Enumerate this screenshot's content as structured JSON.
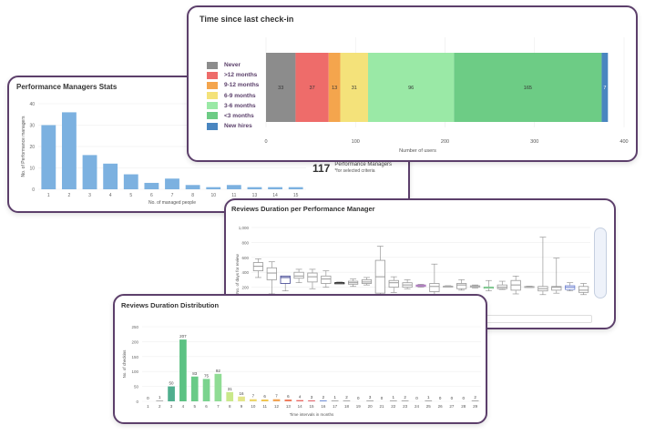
{
  "stats_card": {
    "title": "Performance Managers Stats",
    "chart_data": {
      "type": "bar",
      "xlabel": "No. of managed people",
      "ylabel": "No. of Performance managers",
      "categories": [
        "1",
        "2",
        "3",
        "4",
        "5",
        "6",
        "7",
        "8",
        "10",
        "11",
        "13",
        "14",
        "15"
      ],
      "values": [
        30,
        36,
        16,
        12,
        7,
        3,
        5,
        2,
        1,
        2,
        1,
        1,
        1
      ],
      "ylim": [
        0,
        40
      ],
      "yticks": [
        "0",
        "10",
        "20",
        "30",
        "40"
      ],
      "color": "#7cb1e0"
    }
  },
  "summary": {
    "count": "117",
    "label": "Performance Managers",
    "sublabel": "*for selected criteria"
  },
  "checkin_card": {
    "title": "Time since last check-in",
    "legend": [
      {
        "label": "Never",
        "color": "#8c8c8c"
      },
      {
        "label": ">12 months",
        "color": "#ee6c6a"
      },
      {
        "label": "9-12 months",
        "color": "#f4a54d"
      },
      {
        "label": "6-9 months",
        "color": "#f4e27a"
      },
      {
        "label": "3-6 months",
        "color": "#9ae9a6"
      },
      {
        "label": "<3 months",
        "color": "#6dcc85"
      },
      {
        "label": "New hires",
        "color": "#4a86c0"
      }
    ],
    "chart_data": {
      "type": "bar",
      "orientation": "horizontal-stacked",
      "xlabel": "Number of users",
      "xlim": [
        0,
        400
      ],
      "xticks": [
        "0",
        "100",
        "200",
        "300",
        "400"
      ],
      "series": [
        {
          "name": "Never",
          "value": 33
        },
        {
          "name": ">12 months",
          "value": 37
        },
        {
          "name": "9-12 months",
          "value": 13
        },
        {
          "name": "6-9 months",
          "value": 31
        },
        {
          "name": "3-6 months",
          "value": 96
        },
        {
          "name": "<3 months",
          "value": 165
        },
        {
          "name": "New hires",
          "value": 7
        }
      ]
    }
  },
  "reviews_pm_card": {
    "title": "Reviews Duration per Performance Manager",
    "chart_data": {
      "type": "box",
      "ylabel": "No. of days for review",
      "ylim": [
        0,
        1000
      ],
      "yticks": [
        "200",
        "400",
        "600",
        "800",
        "1,000"
      ],
      "boxes": [
        {
          "min": 330,
          "q1": 420,
          "med": 480,
          "q3": 530,
          "max": 580,
          "color": "#999999"
        },
        {
          "min": 110,
          "q1": 300,
          "med": 390,
          "q3": 460,
          "max": 540,
          "color": "#999999"
        },
        {
          "min": 150,
          "q1": 250,
          "med": 330,
          "q3": 350,
          "max": 350,
          "color": "#3a3f8f"
        },
        {
          "min": 260,
          "q1": 320,
          "med": 350,
          "q3": 400,
          "max": 440,
          "color": "#999999"
        },
        {
          "min": 180,
          "q1": 270,
          "med": 340,
          "q3": 390,
          "max": 440,
          "color": "#999999"
        },
        {
          "min": 200,
          "q1": 250,
          "med": 310,
          "q3": 350,
          "max": 420,
          "color": "#999999"
        },
        {
          "min": 250,
          "q1": 260,
          "med": 260,
          "q3": 260,
          "max": 270,
          "color": "#222222"
        },
        {
          "min": 210,
          "q1": 240,
          "med": 260,
          "q3": 280,
          "max": 310,
          "color": "#999999"
        },
        {
          "min": 230,
          "q1": 250,
          "med": 270,
          "q3": 300,
          "max": 330,
          "color": "#999999"
        },
        {
          "min": 70,
          "q1": 120,
          "med": 340,
          "q3": 560,
          "max": 750,
          "color": "#999999"
        },
        {
          "min": 130,
          "q1": 200,
          "med": 260,
          "q3": 290,
          "max": 340,
          "color": "#999999"
        },
        {
          "min": 180,
          "q1": 200,
          "med": 230,
          "q3": 260,
          "max": 300,
          "color": "#999999"
        },
        {
          "min": 200,
          "q1": 210,
          "med": 220,
          "q3": 230,
          "max": 240,
          "color": "#b07ec0"
        },
        {
          "min": 80,
          "q1": 140,
          "med": 210,
          "q3": 250,
          "max": 510,
          "color": "#999999"
        },
        {
          "min": 200,
          "q1": 205,
          "med": 210,
          "q3": 215,
          "max": 220,
          "color": "#aaaaaa"
        },
        {
          "min": 160,
          "q1": 180,
          "med": 230,
          "q3": 250,
          "max": 300,
          "color": "#999999"
        },
        {
          "min": 190,
          "q1": 200,
          "med": 210,
          "q3": 220,
          "max": 230,
          "color": "#aaaaaa"
        },
        {
          "min": 150,
          "q1": 190,
          "med": 200,
          "q3": 200,
          "max": 290,
          "color": "#6cc080"
        },
        {
          "min": 170,
          "q1": 180,
          "med": 200,
          "q3": 230,
          "max": 280,
          "color": "#999999"
        },
        {
          "min": 110,
          "q1": 160,
          "med": 230,
          "q3": 290,
          "max": 350,
          "color": "#999999"
        },
        {
          "min": 195,
          "q1": 200,
          "med": 205,
          "q3": 210,
          "max": 215,
          "color": "#aaaaaa"
        },
        {
          "min": 100,
          "q1": 150,
          "med": 180,
          "q3": 210,
          "max": 870,
          "color": "#999999"
        },
        {
          "min": 120,
          "q1": 160,
          "med": 200,
          "q3": 210,
          "max": 590,
          "color": "#999999"
        },
        {
          "min": 150,
          "q1": 170,
          "med": 200,
          "q3": 220,
          "max": 260,
          "color": "#6b7fcf"
        },
        {
          "min": 100,
          "q1": 130,
          "med": 160,
          "q3": 210,
          "max": 250,
          "color": "#999999"
        }
      ]
    }
  },
  "dist_card": {
    "title": "Reviews Duration Distribution",
    "chart_data": {
      "type": "bar",
      "xlabel": "Time intervals in months",
      "ylabel": "No. of checkins",
      "ylim": [
        0,
        250
      ],
      "yticks": [
        "0",
        "50",
        "100",
        "150",
        "200",
        "250"
      ],
      "categories": [
        "1",
        "2",
        "3",
        "4",
        "5",
        "6",
        "7",
        "8",
        "9",
        "10",
        "11",
        "12",
        "13",
        "14",
        "15",
        "16",
        "17",
        "18",
        "19",
        "20",
        "21",
        "22",
        "23",
        "24",
        "25",
        "26",
        "27",
        "28",
        "29"
      ],
      "values": [
        0,
        1,
        50,
        207,
        83,
        75,
        92,
        31,
        16,
        7,
        6,
        7,
        6,
        4,
        3,
        2,
        1,
        2,
        0,
        3,
        0,
        1,
        2,
        0,
        1,
        0,
        0,
        0,
        2
      ],
      "colors": [
        "#b0b0b0",
        "#b0b0b0",
        "#4fae8e",
        "#5cc283",
        "#6acb88",
        "#7ad38e",
        "#8fdc94",
        "#c9e88a",
        "#e3e58a",
        "#ecd66a",
        "#f0c44e",
        "#f2a455",
        "#ef7c5b",
        "#ea6660",
        "#e05e66",
        "#6f8ed6",
        "#aaaaaa",
        "#aaaaaa",
        "#aaaaaa",
        "#aaaaaa",
        "#aaaaaa",
        "#aaaaaa",
        "#aaaaaa",
        "#aaaaaa",
        "#aaaaaa",
        "#aaaaaa",
        "#aaaaaa",
        "#aaaaaa",
        "#aaaaaa"
      ]
    }
  }
}
